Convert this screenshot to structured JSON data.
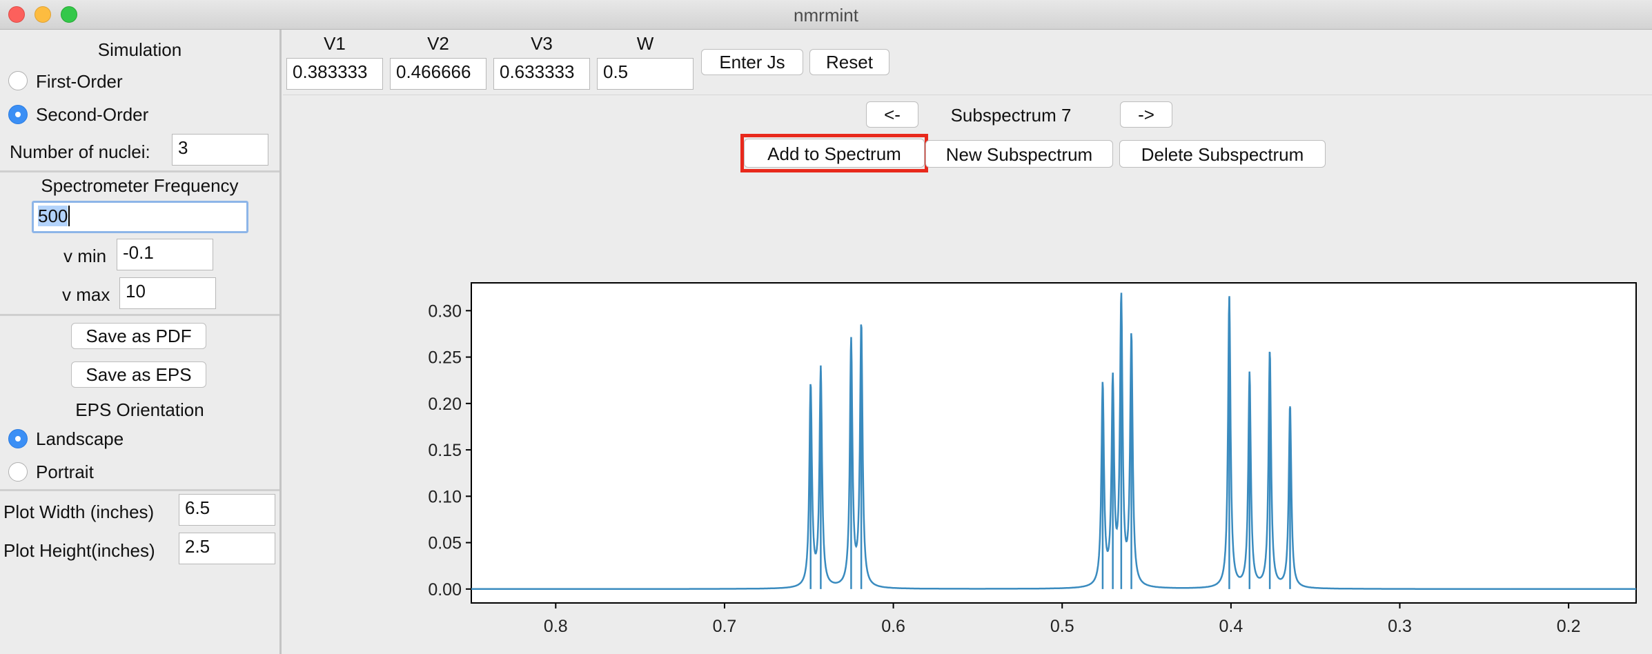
{
  "window": {
    "title": "nmrmint"
  },
  "sidebar": {
    "simulation_label": "Simulation",
    "first_order": "First-Order",
    "second_order": "Second-Order",
    "selected_mode": "Second-Order",
    "nuclei_label": "Number of nuclei:",
    "nuclei_value": "3",
    "freq_label": "Spectrometer Frequency",
    "freq_value": "500",
    "vmin_label": "v min",
    "vmin_value": "-0.1",
    "vmax_label": "v max",
    "vmax_value": "10",
    "save_pdf": "Save as PDF",
    "save_eps": "Save as EPS",
    "eps_orientation_label": "EPS Orientation",
    "landscape": "Landscape",
    "portrait": "Portrait",
    "selected_orientation": "Landscape",
    "width_label": "Plot Width (inches)",
    "width_value": "6.5",
    "height_label": "Plot Height(inches)",
    "height_value": "2.5"
  },
  "toolbar": {
    "fields": [
      {
        "label": "V1",
        "value": "0.383333"
      },
      {
        "label": "V2",
        "value": "0.466666"
      },
      {
        "label": "V3",
        "value": "0.633333"
      },
      {
        "label": "W",
        "value": "0.5"
      }
    ],
    "enter_js": "Enter Js",
    "reset": "Reset"
  },
  "subspectrum": {
    "prev": "<-",
    "label": "Subspectrum 7",
    "next": "->",
    "add": "Add to Spectrum",
    "new": "New Subspectrum",
    "delete": "Delete Subspectrum"
  },
  "colors": {
    "line": "#3a8bbf",
    "highlight": "#e8291c",
    "radio_on": "#3b8ff5"
  },
  "chart_data": {
    "type": "line",
    "title": "",
    "xlabel": "",
    "ylabel": "",
    "xlim": [
      0.85,
      0.16
    ],
    "ylim": [
      -0.015,
      0.33
    ],
    "x_ticks": [
      "0.8",
      "0.7",
      "0.6",
      "0.5",
      "0.4",
      "0.3",
      "0.2"
    ],
    "y_ticks": [
      "0.00",
      "0.05",
      "0.10",
      "0.15",
      "0.20",
      "0.25",
      "0.30"
    ],
    "peaks": [
      {
        "x": 0.649,
        "y": 0.218
      },
      {
        "x": 0.643,
        "y": 0.235
      },
      {
        "x": 0.625,
        "y": 0.265
      },
      {
        "x": 0.619,
        "y": 0.283
      },
      {
        "x": 0.476,
        "y": 0.217
      },
      {
        "x": 0.47,
        "y": 0.217
      },
      {
        "x": 0.465,
        "y": 0.307
      },
      {
        "x": 0.459,
        "y": 0.269
      },
      {
        "x": 0.401,
        "y": 0.314
      },
      {
        "x": 0.389,
        "y": 0.231
      },
      {
        "x": 0.377,
        "y": 0.255
      },
      {
        "x": 0.365,
        "y": 0.197
      }
    ]
  }
}
